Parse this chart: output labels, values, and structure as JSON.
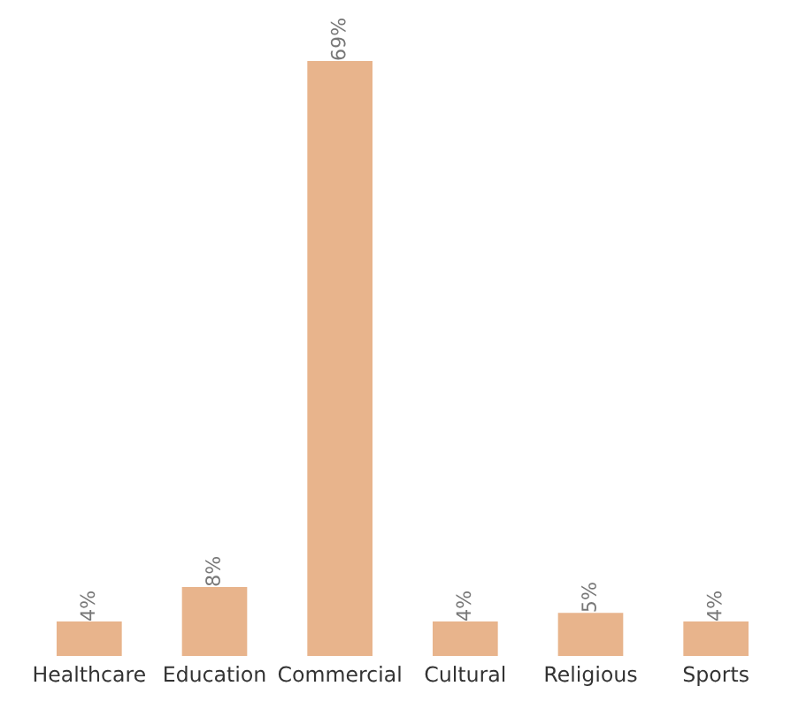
{
  "chart_data": {
    "type": "bar",
    "categories": [
      "Healthcare",
      "Education",
      "Commercial",
      "Cultural",
      "Religious",
      "Sports"
    ],
    "values": [
      4,
      8,
      69,
      4,
      5,
      4
    ],
    "value_labels": [
      "4%",
      "8%",
      "69%",
      "4%",
      "5%",
      "4%"
    ],
    "color": "#e8b48c",
    "grid": false,
    "legend": false
  }
}
